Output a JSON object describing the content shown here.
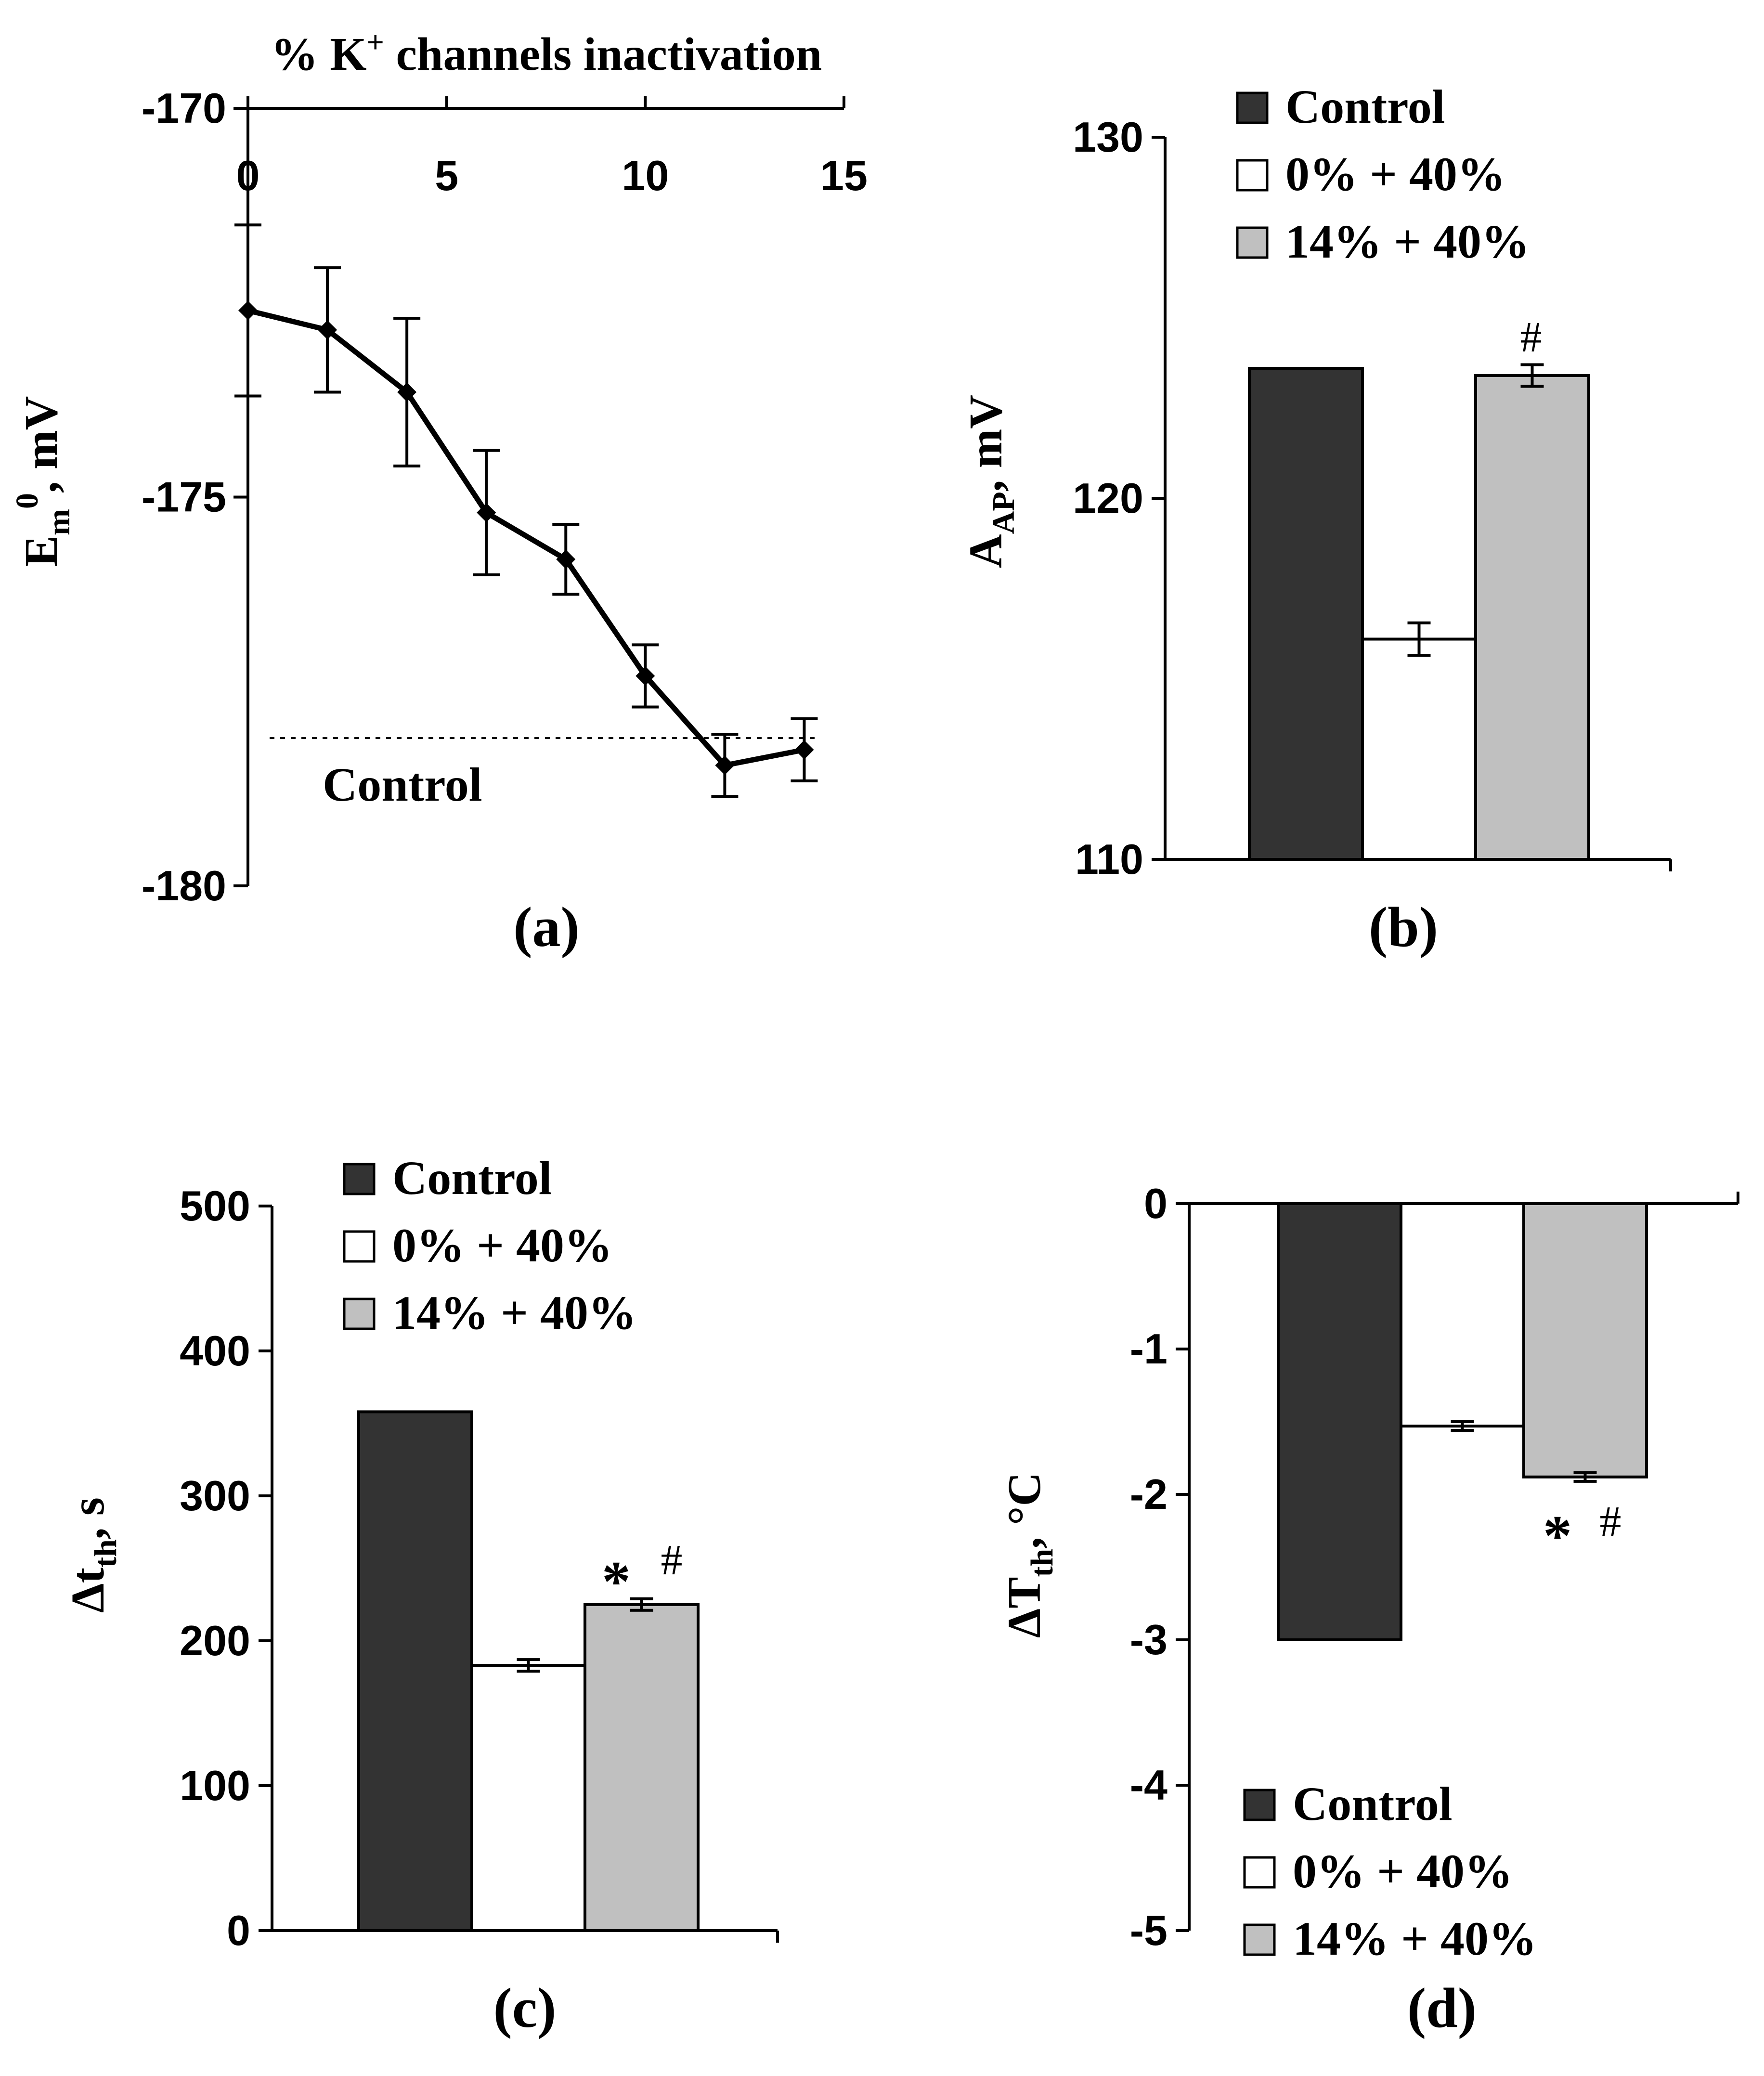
{
  "colors": {
    "control": "#333333",
    "zero_plus_40": "#ffffff",
    "fourteen_plus_40": "#c0c0c0",
    "line": "#000000"
  },
  "legend": [
    {
      "key": "control",
      "label": "Control"
    },
    {
      "key": "zero_plus_40",
      "label": "0% + 40%"
    },
    {
      "key": "fourteen_plus_40",
      "label": "14% + 40%"
    }
  ],
  "chart_data": [
    {
      "panel": "(a)",
      "type": "line",
      "title": "% K⁺ channels inactivation",
      "xlabel": "% K⁺ channels inactivation",
      "ylabel": "Em⁰, mV",
      "ylabel_main": "E",
      "ylabel_sub": "m",
      "ylabel_sup": "0",
      "ylabel_rest": ", mV",
      "xlim": [
        0,
        15
      ],
      "ylim": [
        -180,
        -170
      ],
      "xticks": [
        "0",
        "5",
        "10",
        "15"
      ],
      "yticks": [
        "-170",
        "-175",
        "-180"
      ],
      "x": [
        0,
        2,
        4,
        6,
        8,
        10,
        12,
        14
      ],
      "y": [
        -172.6,
        -172.85,
        -173.65,
        -175.2,
        -175.8,
        -177.3,
        -178.45,
        -178.25
      ],
      "err": [
        1.1,
        0.8,
        0.95,
        0.8,
        0.45,
        0.4,
        0.4,
        0.4
      ],
      "control_line": -178.1,
      "control_label": "Control"
    },
    {
      "panel": "(b)",
      "type": "bar",
      "ylabel": "A_AP, mV",
      "ylabel_main": "A",
      "ylabel_sub": "AP",
      "ylabel_rest": ", mV",
      "ylim": [
        110,
        130
      ],
      "yticks": [
        "130",
        "120",
        "110"
      ],
      "categories": [
        "Control",
        "0% + 40%",
        "14% + 40%"
      ],
      "values": [
        123.6,
        116.1,
        123.4
      ],
      "err": [
        0,
        0.45,
        0.3
      ],
      "annotations": [
        {
          "category": "14% + 40%",
          "text": "#"
        }
      ]
    },
    {
      "panel": "(c)",
      "type": "bar",
      "ylabel": "Δt_th, s",
      "ylabel_main": "Δt",
      "ylabel_sub": "th",
      "ylabel_rest": ", s",
      "ylim": [
        0,
        500
      ],
      "yticks": [
        "500",
        "400",
        "300",
        "200",
        "100",
        "0"
      ],
      "categories": [
        "Control",
        "0% + 40%",
        "14% + 40%"
      ],
      "values": [
        358,
        183,
        225
      ],
      "err": [
        0,
        4,
        4
      ],
      "annotations": [
        {
          "category": "14% + 40%",
          "text": "*"
        },
        {
          "category": "14% + 40%",
          "text": "#"
        }
      ]
    },
    {
      "panel": "(d)",
      "type": "bar",
      "ylabel": "ΔT_th, °C",
      "ylabel_main": "ΔT",
      "ylabel_sub": "th",
      "ylabel_rest": ", °C",
      "ylim": [
        -5,
        0
      ],
      "yticks": [
        "0",
        "-1",
        "-2",
        "-3",
        "-4",
        "-5"
      ],
      "categories": [
        "Control",
        "0% + 40%",
        "14% + 40%"
      ],
      "values": [
        -3.0,
        -1.53,
        -1.88
      ],
      "err": [
        0,
        0.03,
        0.03
      ],
      "annotations": [
        {
          "category": "14% + 40%",
          "text": "*"
        },
        {
          "category": "14% + 40%",
          "text": "#"
        }
      ]
    }
  ]
}
